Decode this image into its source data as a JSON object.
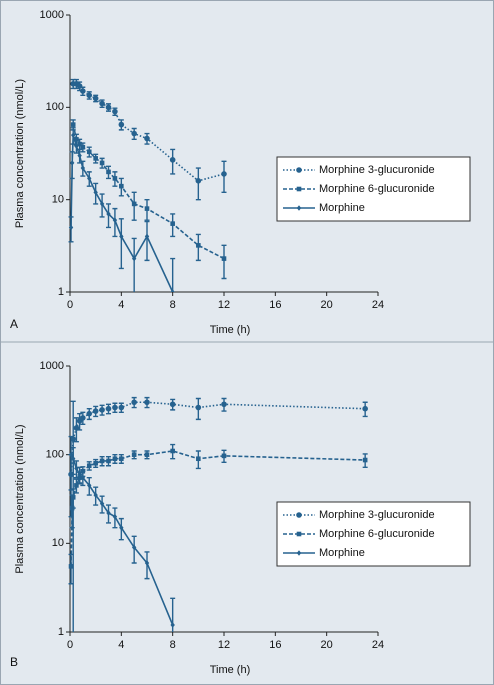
{
  "chart_data": [
    {
      "type": "line",
      "panel_label": "A",
      "xlabel": "Time (h)",
      "ylabel": "Plasma concentration (nmol/L)",
      "log_y": true,
      "xlim": [
        0,
        24
      ],
      "ylim": [
        1,
        1000
      ],
      "xticks": [
        0,
        4,
        8,
        12,
        16,
        20,
        24
      ],
      "yticks": [
        1,
        10,
        100,
        1000
      ],
      "series": [
        {
          "name": "Morphine 3-glucuronide",
          "color": "#26628f",
          "style": "dotted",
          "marker": "circle",
          "x": [
            0.25,
            0.5,
            0.75,
            1,
            1.5,
            2,
            2.5,
            3,
            3.5,
            4,
            5,
            6,
            8,
            10,
            12
          ],
          "values": [
            180,
            180,
            170,
            150,
            135,
            125,
            110,
            100,
            90,
            65,
            52,
            46,
            27,
            16,
            19
          ],
          "errors": [
            20,
            20,
            18,
            15,
            12,
            10,
            10,
            9,
            8,
            8,
            7,
            6,
            8,
            6,
            7
          ]
        },
        {
          "name": "Morphine 6-glucuronide",
          "color": "#26628f",
          "style": "dashed",
          "marker": "square",
          "x": [
            0.25,
            0.5,
            0.75,
            1,
            1.5,
            2,
            2.5,
            3,
            3.5,
            4,
            5,
            6,
            8,
            10,
            12
          ],
          "values": [
            65,
            45,
            40,
            37,
            33,
            28,
            25,
            20,
            17,
            14,
            9,
            8,
            5.5,
            3.2,
            2.3
          ],
          "errors": [
            8,
            6,
            5,
            4,
            4,
            3,
            3,
            3,
            3,
            3,
            3,
            2,
            1.5,
            1,
            0.9
          ]
        },
        {
          "name": "Morphine",
          "color": "#26628f",
          "style": "solid",
          "marker": "diamond",
          "x": [
            0.08,
            0.17,
            0.25,
            0.5,
            0.75,
            1,
            1.5,
            2,
            2.5,
            3,
            3.5,
            4,
            5,
            6,
            8
          ],
          "values": [
            5,
            25,
            50,
            38,
            30,
            22,
            17,
            12,
            9,
            7,
            6,
            4,
            2.3,
            4,
            1
          ],
          "errors": [
            1.5,
            8,
            10,
            6,
            5,
            4,
            3,
            3,
            2.5,
            2,
            2,
            2.2,
            1.5,
            1.8,
            1.3
          ]
        }
      ]
    },
    {
      "type": "line",
      "panel_label": "B",
      "xlabel": "Time (h)",
      "ylabel": "Plasma concentration (nmol/L)",
      "log_y": true,
      "xlim": [
        0,
        24
      ],
      "ylim": [
        1,
        1000
      ],
      "xticks": [
        0,
        4,
        8,
        12,
        16,
        20,
        24
      ],
      "yticks": [
        1,
        10,
        100,
        1000
      ],
      "series": [
        {
          "name": "Morphine 3-glucuronide",
          "color": "#26628f",
          "style": "dotted",
          "marker": "circle",
          "x": [
            0.08,
            0.25,
            0.5,
            0.75,
            1,
            1.5,
            2,
            2.5,
            3,
            3.5,
            4,
            5,
            6,
            8,
            10,
            12,
            23
          ],
          "values": [
            60,
            150,
            200,
            240,
            260,
            290,
            310,
            320,
            330,
            340,
            340,
            390,
            390,
            370,
            340,
            370,
            330
          ],
          "errors": [
            40,
            250,
            60,
            50,
            40,
            40,
            40,
            40,
            40,
            40,
            40,
            50,
            50,
            50,
            90,
            60,
            60
          ]
        },
        {
          "name": "Morphine 6-glucuronide",
          "color": "#26628f",
          "style": "dashed",
          "marker": "square",
          "x": [
            0.08,
            0.17,
            0.25,
            0.5,
            0.75,
            1,
            1.5,
            2,
            2.5,
            3,
            3.5,
            4,
            5,
            6,
            8,
            10,
            12,
            23
          ],
          "values": [
            5.5,
            25,
            33,
            45,
            55,
            65,
            75,
            80,
            85,
            85,
            90,
            90,
            100,
            100,
            110,
            90,
            97,
            87
          ],
          "errors": [
            2,
            10,
            8,
            8,
            8,
            8,
            8,
            8,
            10,
            10,
            10,
            10,
            10,
            10,
            20,
            20,
            15,
            15
          ]
        },
        {
          "name": "Morphine",
          "color": "#26628f",
          "style": "solid",
          "marker": "diamond",
          "x": [
            0.08,
            0.25,
            0.5,
            0.75,
            1,
            1.5,
            2,
            2.5,
            3,
            3.5,
            4,
            5,
            6,
            8
          ],
          "values": [
            100,
            90,
            70,
            60,
            55,
            45,
            35,
            28,
            22,
            20,
            15,
            9,
            6,
            1.2
          ],
          "errors": [
            60,
            30,
            15,
            12,
            10,
            10,
            8,
            6,
            5,
            5,
            4,
            3,
            2,
            1.2
          ]
        }
      ]
    }
  ]
}
